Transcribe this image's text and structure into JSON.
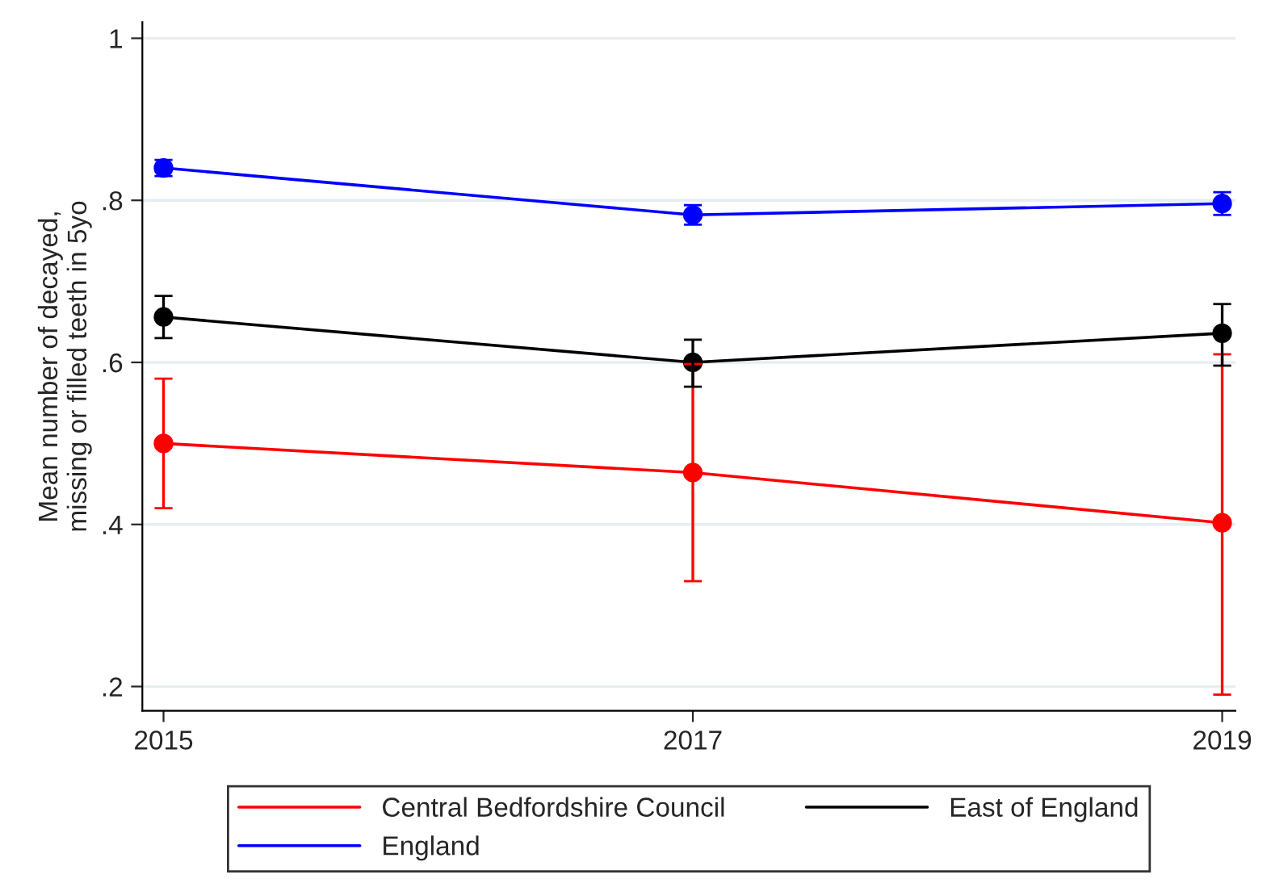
{
  "chart_data": {
    "type": "line",
    "ylabel": "Mean number of decayed,\nmissing or filled teeth in 5yo",
    "x": [
      2015,
      2017,
      2019
    ],
    "series": [
      {
        "name": "Central Bedfordshire Council",
        "color": "#ff0000",
        "values": [
          0.5,
          0.464,
          0.402
        ],
        "errors": [
          [
            0.42,
            0.58
          ],
          [
            0.33,
            0.598
          ],
          [
            0.19,
            0.61
          ]
        ]
      },
      {
        "name": "East of England",
        "color": "#000000",
        "values": [
          0.656,
          0.6,
          0.636
        ],
        "errors": [
          [
            0.63,
            0.682
          ],
          [
            0.57,
            0.628
          ],
          [
            0.596,
            0.672
          ]
        ]
      },
      {
        "name": "England",
        "color": "#0000ff",
        "values": [
          0.84,
          0.782,
          0.796
        ],
        "errors": [
          [
            0.83,
            0.85
          ],
          [
            0.77,
            0.794
          ],
          [
            0.782,
            0.81
          ]
        ]
      }
    ],
    "xlim": [
      2014.92,
      2019.05
    ],
    "xticks": [
      2015,
      2017,
      2019
    ],
    "ylim": [
      0.17,
      1.02
    ],
    "yticks": [
      {
        "value": 0.2,
        "label": ".2"
      },
      {
        "value": 0.4,
        "label": ".4"
      },
      {
        "value": 0.6,
        "label": ".6"
      },
      {
        "value": 0.8,
        "label": ".8"
      },
      1
    ],
    "grid": "y",
    "legend": "bottom",
    "marker": "circle",
    "line_style": "solid"
  }
}
